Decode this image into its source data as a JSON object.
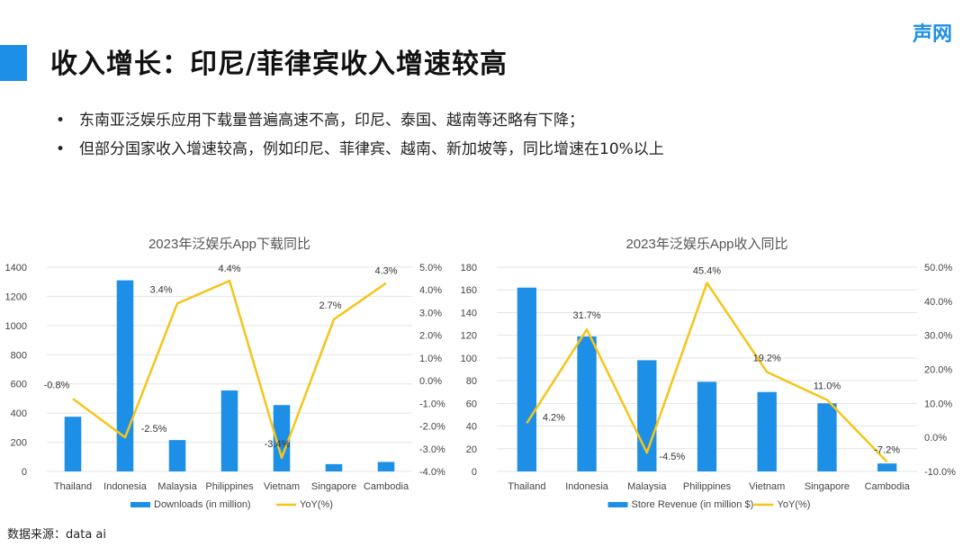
{
  "page": {
    "title": "收入增长：印尼/菲律宾收入增速较高",
    "brand": "声网",
    "bullets": [
      "东南亚泛娱乐应用下载量普遍高速不高，印尼、泰国、越南等还略有下降；",
      "但部分国家收入增速较高，例如印尼、菲律宾、越南、新加坡等，同比增速在10%以上"
    ],
    "bullet_symbol": "•",
    "source": "数据来源：data ai"
  },
  "colors": {
    "bar": "#1e8fe6",
    "line": "#f5c518",
    "accent": "#1e8fe6"
  },
  "chart_data": [
    {
      "type": "bar+line",
      "title": "2023年泛娱乐App下载同比",
      "categories": [
        "Thailand",
        "Indonesia",
        "Malaysia",
        "Philippines",
        "Vietnam",
        "Singapore",
        "Cambodia"
      ],
      "series": [
        {
          "name": "Downloads (in million)",
          "type": "bar",
          "axis": "left",
          "values": [
            375,
            1310,
            215,
            555,
            455,
            50,
            65
          ]
        },
        {
          "name": "YoY(%)",
          "type": "line",
          "axis": "right",
          "values": [
            -0.8,
            -2.5,
            3.4,
            4.4,
            -3.4,
            2.7,
            4.3
          ],
          "labels": [
            "-0.8%",
            "-2.5%",
            "3.4%",
            "4.4%",
            "-3.4%",
            "2.7%",
            "4.3%"
          ]
        }
      ],
      "ylim_left": [
        0,
        1400
      ],
      "yticks_left": [
        "0",
        "200",
        "400",
        "600",
        "800",
        "1000",
        "1200",
        "1400"
      ],
      "ylim_right": [
        -4,
        5
      ],
      "yticks_right": [
        "-4.0%",
        "-3.0%",
        "-2.0%",
        "-1.0%",
        "0.0%",
        "1.0%",
        "2.0%",
        "3.0%",
        "4.0%",
        "5.0%"
      ],
      "grid": true,
      "legend": "bottom"
    },
    {
      "type": "bar+line",
      "title": "2023年泛娱乐App收入同比",
      "categories": [
        "Thailand",
        "Indonesia",
        "Malaysia",
        "Philippines",
        "Vietnam",
        "Singapore",
        "Cambodia"
      ],
      "series": [
        {
          "name": "Store Revenue (in million $)",
          "type": "bar",
          "axis": "left",
          "values": [
            162,
            119,
            98,
            79,
            70,
            60,
            7
          ]
        },
        {
          "name": "YoY(%)",
          "type": "line",
          "axis": "right",
          "values": [
            4.2,
            31.7,
            -4.5,
            45.4,
            19.2,
            11.0,
            -7.2
          ],
          "labels": [
            "4.2%",
            "31.7%",
            "-4.5%",
            "45.4%",
            "19.2%",
            "11.0%",
            "-7.2%"
          ]
        }
      ],
      "ylim_left": [
        0,
        180
      ],
      "yticks_left": [
        "0",
        "20",
        "40",
        "60",
        "80",
        "100",
        "120",
        "140",
        "160",
        "180"
      ],
      "ylim_right": [
        -10,
        50
      ],
      "yticks_right": [
        "-10.0%",
        "0.0%",
        "10.0%",
        "20.0%",
        "30.0%",
        "40.0%",
        "50.0%"
      ],
      "grid": true,
      "legend": "bottom"
    }
  ]
}
